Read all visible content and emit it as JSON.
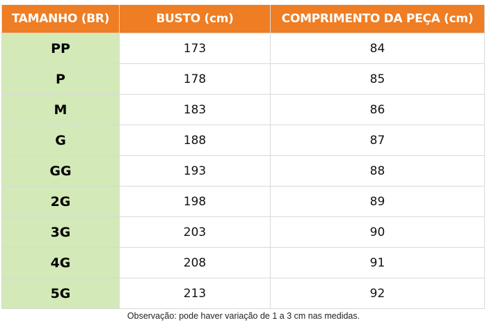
{
  "table": {
    "headers": [
      "TAMANHO (BR)",
      "BUSTO (cm)",
      "COMPRIMENTO DA PEÇA (cm)"
    ],
    "rows": [
      {
        "size": "PP",
        "busto": "173",
        "comprimento": "84"
      },
      {
        "size": "P",
        "busto": "178",
        "comprimento": "85"
      },
      {
        "size": "M",
        "busto": "183",
        "comprimento": "86"
      },
      {
        "size": "G",
        "busto": "188",
        "comprimento": "87"
      },
      {
        "size": "GG",
        "busto": "193",
        "comprimento": "88"
      },
      {
        "size": "2G",
        "busto": "198",
        "comprimento": "89"
      },
      {
        "size": "3G",
        "busto": "203",
        "comprimento": "90"
      },
      {
        "size": "4G",
        "busto": "208",
        "comprimento": "91"
      },
      {
        "size": "5G",
        "busto": "213",
        "comprimento": "92"
      }
    ]
  },
  "note": "Observação: pode haver variação de 1 a 3 cm nas medidas.",
  "colors": {
    "header_bg": "#ef7d23",
    "size_column_bg": "#d3e9b7",
    "grid_line": "#d9d9d9"
  }
}
